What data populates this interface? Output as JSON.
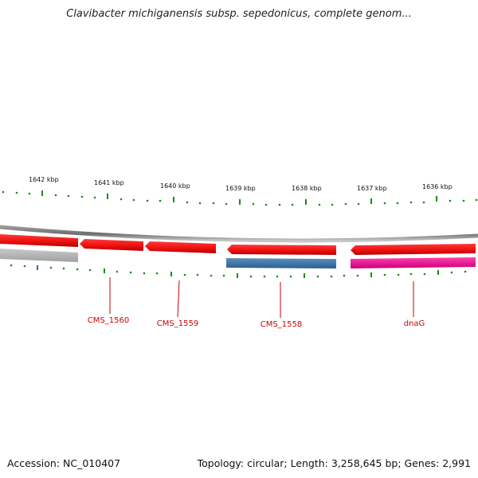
{
  "title": "Clavibacter michiganensis subsp. sepedonicus, complete genom...",
  "footer": {
    "accession": "Accession: NC_010407",
    "summary": "Topology: circular; Length: 3,258,645 bp; Genes: 2,991"
  },
  "ruler": {
    "labels": [
      {
        "text": "1642 kbp"
      },
      {
        "text": "1641 kbp"
      },
      {
        "text": "1640 kbp"
      },
      {
        "text": "1639 kbp"
      },
      {
        "text": "1638 kbp"
      },
      {
        "text": "1637 kbp"
      },
      {
        "text": "1636 kbp"
      }
    ]
  },
  "genes": [
    {
      "label": "CMS_1560",
      "color": "#ee1111"
    },
    {
      "label": "CMS_1559",
      "color": "#ee1111"
    },
    {
      "label": "CMS_1558",
      "color": "#ee1111"
    },
    {
      "label": "dnaG",
      "color": "#ee1111"
    }
  ],
  "colors": {
    "backbone": "#7a7a7a",
    "forward_gene": "#ee1111",
    "reverse_gene_blue": "#3f77aa",
    "reverse_gene_pink": "#ee1199",
    "reverse_gene_gray": "#b8b8b8",
    "tick": "#1a8a1a",
    "gene_label": "#cc0000"
  }
}
